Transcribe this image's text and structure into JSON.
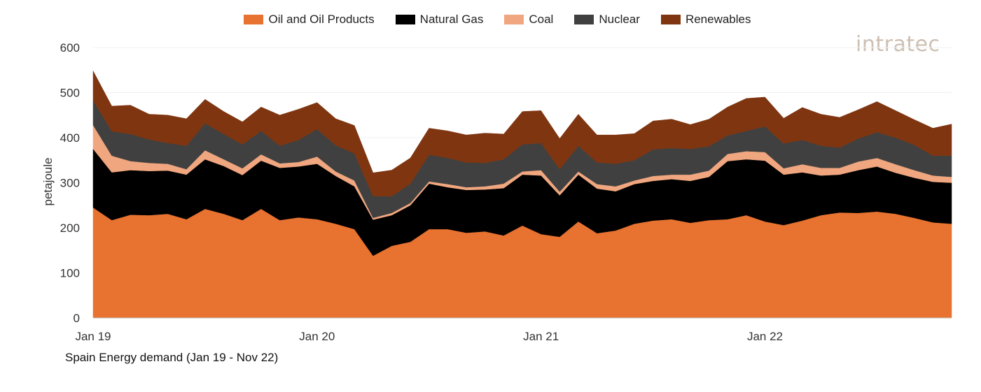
{
  "logo_text": "intratec",
  "chart_data": {
    "type": "area",
    "stacked": true,
    "title": "Spain Energy demand (Jan 19 - Nov 22)",
    "xlabel": "",
    "ylabel": "petajoule",
    "ylim": [
      0,
      600
    ],
    "yticks": [
      0,
      100,
      200,
      300,
      400,
      500,
      600
    ],
    "ytick_labels": [
      "0",
      "100",
      "200",
      "300",
      "400",
      "500",
      "600"
    ],
    "xtick_labels": [
      "Jan 19",
      "Jan 20",
      "Jan 21",
      "Jan 22"
    ],
    "x": [
      "Jan 19",
      "Feb 19",
      "Mar 19",
      "Apr 19",
      "May 19",
      "Jun 19",
      "Jul 19",
      "Aug 19",
      "Sep 19",
      "Oct 19",
      "Nov 19",
      "Dec 19",
      "Jan 20",
      "Feb 20",
      "Mar 20",
      "Apr 20",
      "May 20",
      "Jun 20",
      "Jul 20",
      "Aug 20",
      "Sep 20",
      "Oct 20",
      "Nov 20",
      "Dec 20",
      "Jan 21",
      "Feb 21",
      "Mar 21",
      "Apr 21",
      "May 21",
      "Jun 21",
      "Jul 21",
      "Aug 21",
      "Sep 21",
      "Oct 21",
      "Nov 21",
      "Dec 21",
      "Jan 22",
      "Feb 22",
      "Mar 22",
      "Apr 22",
      "May 22",
      "Jun 22",
      "Jul 22",
      "Aug 22",
      "Sep 22",
      "Oct 22",
      "Nov 22"
    ],
    "grid": true,
    "legend_position": "top",
    "series": [
      {
        "name": "Oil and Oil Products",
        "color": "#E8722F",
        "values": [
          245,
          217,
          229,
          228,
          231,
          219,
          242,
          231,
          217,
          242,
          217,
          223,
          219,
          209,
          197,
          138,
          160,
          169,
          197,
          197,
          189,
          192,
          183,
          205,
          186,
          180,
          214,
          188,
          194,
          209,
          216,
          219,
          211,
          217,
          219,
          228,
          214,
          206,
          216,
          228,
          234,
          233,
          236,
          231,
          222,
          212,
          209
        ]
      },
      {
        "name": "Natural Gas",
        "color": "#000000",
        "values": [
          130,
          106,
          99,
          98,
          96,
          99,
          110,
          106,
          100,
          107,
          116,
          113,
          123,
          106,
          95,
          80,
          68,
          81,
          101,
          93,
          95,
          93,
          105,
          113,
          130,
          92,
          104,
          99,
          87,
          88,
          88,
          89,
          93,
          96,
          129,
          124,
          135,
          112,
          107,
          88,
          84,
          95,
          100,
          91,
          89,
          90,
          91
        ]
      },
      {
        "name": "Coal",
        "color": "#F0A67F",
        "values": [
          53,
          37,
          20,
          18,
          15,
          12,
          20,
          15,
          15,
          14,
          10,
          10,
          16,
          10,
          13,
          4,
          5,
          5,
          5,
          7,
          6,
          7,
          10,
          7,
          12,
          8,
          7,
          10,
          11,
          8,
          11,
          10,
          14,
          14,
          16,
          18,
          19,
          14,
          18,
          17,
          15,
          19,
          19,
          19,
          17,
          14,
          13
        ]
      },
      {
        "name": "Nuclear",
        "color": "#404040",
        "values": [
          55,
          54,
          60,
          52,
          46,
          52,
          60,
          56,
          53,
          52,
          39,
          49,
          61,
          58,
          60,
          48,
          37,
          43,
          59,
          58,
          55,
          52,
          54,
          60,
          60,
          50,
          57,
          48,
          50,
          45,
          59,
          59,
          57,
          54,
          41,
          45,
          57,
          55,
          54,
          49,
          45,
          51,
          57,
          59,
          56,
          44,
          47
        ]
      },
      {
        "name": "Renewables",
        "color": "#7F3510",
        "values": [
          65,
          56,
          64,
          56,
          62,
          60,
          53,
          50,
          50,
          53,
          68,
          68,
          59,
          59,
          62,
          52,
          58,
          57,
          59,
          60,
          61,
          66,
          56,
          73,
          72,
          68,
          70,
          61,
          64,
          59,
          63,
          64,
          54,
          60,
          63,
          72,
          65,
          56,
          72,
          70,
          67,
          64,
          68,
          60,
          56,
          61,
          70
        ]
      }
    ]
  }
}
